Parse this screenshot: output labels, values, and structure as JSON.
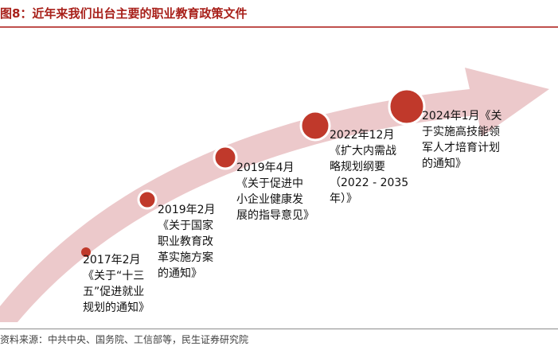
{
  "title": "图8：近年来我们出台主要的职业教育政策文件",
  "source": "资料来源：中共中央、国务院、工信部等，民生证券研究院",
  "colors": {
    "title": "#a8201a",
    "arrow_fill": "#ecc9cb",
    "marker_fill": "#c0392b",
    "marker_ring": "#ffffff"
  },
  "events": [
    {
      "id": "e2017",
      "lines": [
        "2017年2月",
        "《关于“十三",
        "五”促进就业",
        "规划的通知》"
      ]
    },
    {
      "id": "e2019a",
      "lines": [
        "2019年2月",
        "《关于国家",
        "职业教育改",
        "革实施方案",
        "的通知》"
      ]
    },
    {
      "id": "e2019b",
      "lines": [
        "2019年4月",
        "《关于促进中",
        "小企业健康发",
        "展的指导意见》"
      ]
    },
    {
      "id": "e2022",
      "lines": [
        "2022年12月",
        "《扩大内需战",
        "略规划纲要",
        "（2022 - 2035",
        "年）》"
      ]
    },
    {
      "id": "e2024",
      "lines": [
        "2024年1月《关",
        "于实施高技能领",
        "军人才培育计划",
        "的通知》"
      ]
    }
  ]
}
